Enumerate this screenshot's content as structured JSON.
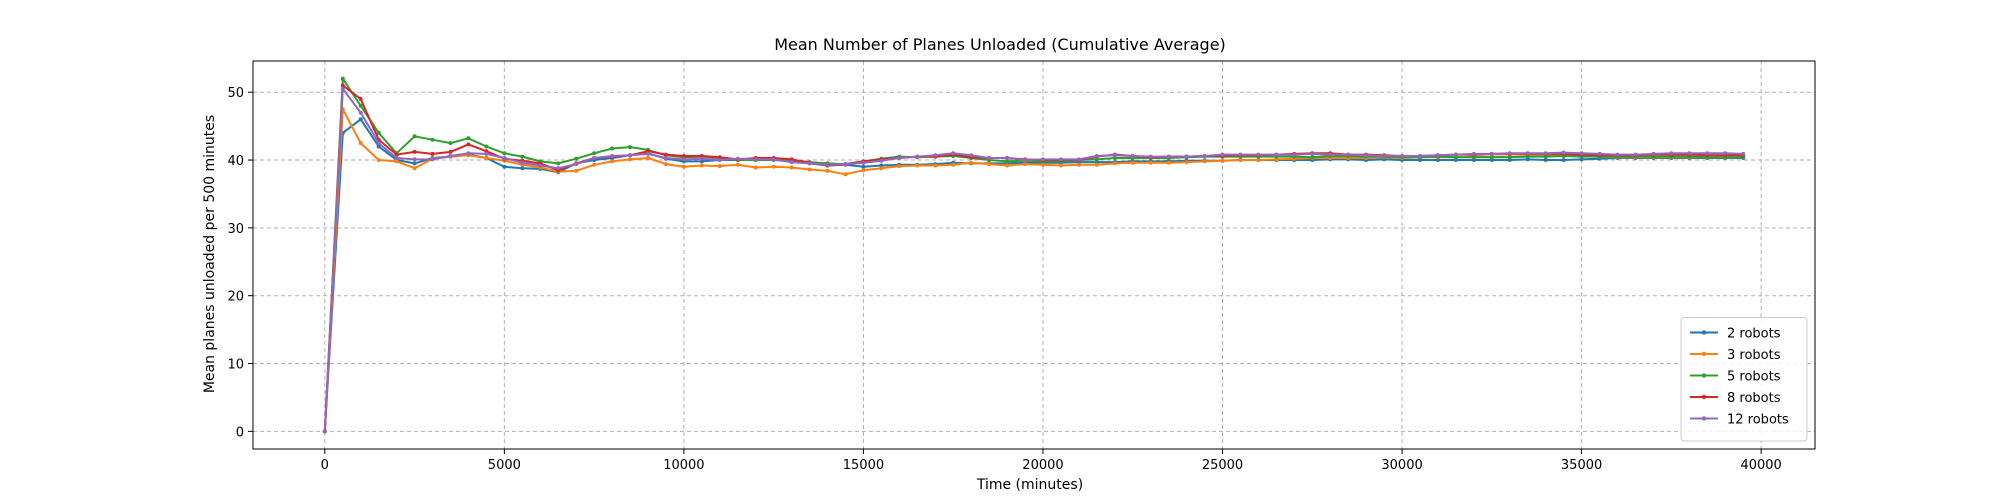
{
  "chart_data": {
    "type": "line",
    "title": "Mean Number of Planes Unloaded (Cumulative Average)",
    "xlabel": "Time (minutes)",
    "ylabel": "Mean planes unloaded per 500 minutes",
    "xlim": [
      -2000,
      41500
    ],
    "ylim": [
      -2.6,
      54.6
    ],
    "xticks": [
      0,
      5000,
      10000,
      15000,
      20000,
      25000,
      30000,
      35000,
      40000
    ],
    "yticks": [
      0,
      10,
      20,
      30,
      40,
      50
    ],
    "grid": true,
    "legend_position": "lower-right",
    "x": [
      0,
      500,
      1000,
      1500,
      2000,
      2500,
      3000,
      3500,
      4000,
      4500,
      5000,
      5500,
      6000,
      6500,
      7000,
      7500,
      8000,
      8500,
      9000,
      9500,
      10000,
      10500,
      11000,
      11500,
      12000,
      12500,
      13000,
      13500,
      14000,
      14500,
      15000,
      15500,
      16000,
      16500,
      17000,
      17500,
      18000,
      18500,
      19000,
      19500,
      20000,
      20500,
      21000,
      21500,
      22000,
      22500,
      23000,
      23500,
      24000,
      24500,
      25000,
      25500,
      26000,
      26500,
      27000,
      27500,
      28000,
      28500,
      29000,
      29500,
      30000,
      30500,
      31000,
      31500,
      32000,
      32500,
      33000,
      33500,
      34000,
      34500,
      35000,
      35500,
      36000,
      36500,
      37000,
      37500,
      38000,
      38500,
      39000,
      39500
    ],
    "series": [
      {
        "name": "2 robots",
        "color": "#1f77b4",
        "values": [
          0,
          44,
          46,
          42,
          40,
          39.5,
          40.3,
          40.5,
          40.8,
          40.3,
          39,
          38.8,
          38.7,
          38.2,
          39.5,
          40,
          40.3,
          40.7,
          41,
          40.2,
          39.8,
          39.8,
          40,
          40,
          40,
          40,
          39.8,
          39.5,
          39.2,
          39.3,
          39.0,
          39.2,
          39.3,
          39.3,
          39.4,
          39.6,
          39.5,
          39.5,
          39.5,
          39.6,
          39.6,
          39.6,
          39.7,
          39.7,
          39.7,
          39.8,
          39.8,
          39.8,
          39.9,
          39.9,
          39.9,
          40.0,
          40.0,
          40.0,
          40.0,
          40.0,
          40.1,
          40.1,
          40.0,
          40.1,
          40.0,
          40.0,
          40.0,
          40.0,
          40.0,
          40.0,
          40.0,
          40.1,
          40.0,
          40.0,
          40.1,
          40.2,
          40.3,
          40.3,
          40.3,
          40.3,
          40.3,
          40.3,
          40.3,
          40.3
        ]
      },
      {
        "name": "3 robots",
        "color": "#ff7f0e",
        "values": [
          0,
          47.5,
          42.5,
          40,
          39.8,
          38.8,
          40.2,
          40.5,
          40.7,
          40.3,
          39.9,
          39.3,
          38.9,
          38.3,
          38.4,
          39.3,
          39.8,
          40.1,
          40.3,
          39.4,
          39.0,
          39.2,
          39.1,
          39.3,
          38.9,
          39.0,
          38.9,
          38.6,
          38.4,
          37.9,
          38.5,
          38.8,
          39.1,
          39.2,
          39.2,
          39.3,
          39.6,
          39.4,
          39.2,
          39.4,
          39.3,
          39.2,
          39.3,
          39.3,
          39.5,
          39.6,
          39.6,
          39.6,
          39.7,
          39.8,
          39.9,
          40.0,
          40.0,
          40.1,
          40.2,
          40.3,
          40.3,
          40.3,
          40.3,
          40.4,
          40.3,
          40.4,
          40.4,
          40.4,
          40.5,
          40.5,
          40.5,
          40.6,
          40.6,
          40.7,
          40.6,
          40.5,
          40.4,
          40.4,
          40.4,
          40.4,
          40.4,
          40.4,
          40.4,
          40.4
        ]
      },
      {
        "name": "5 robots",
        "color": "#2ca02c",
        "values": [
          0,
          52,
          48,
          44,
          41,
          43.5,
          43,
          42.5,
          43.2,
          42,
          41,
          40.5,
          39.8,
          39.5,
          40.2,
          41,
          41.7,
          41.9,
          41.5,
          40.7,
          40.4,
          40.5,
          40.3,
          40.0,
          40.0,
          40.1,
          40.0,
          39.7,
          39.5,
          39.4,
          39.8,
          40.2,
          40.5,
          40.4,
          40.5,
          40.6,
          40.3,
          40.0,
          39.8,
          39.9,
          39.8,
          39.8,
          40.0,
          40.1,
          40.3,
          40.3,
          40.3,
          40.3,
          40.4,
          40.5,
          40.5,
          40.5,
          40.5,
          40.5,
          40.5,
          40.4,
          40.6,
          40.6,
          40.5,
          40.5,
          40.4,
          40.4,
          40.5,
          40.4,
          40.4,
          40.4,
          40.4,
          40.5,
          40.5,
          40.6,
          40.5,
          40.5,
          40.5,
          40.5,
          40.5,
          40.5,
          40.5,
          40.4,
          40.4,
          40.4
        ]
      },
      {
        "name": "8 robots",
        "color": "#d62728",
        "values": [
          0,
          51,
          49,
          43,
          40.8,
          41.2,
          40.9,
          41.2,
          42.3,
          41.3,
          40.2,
          39.9,
          39.5,
          38.5,
          39.5,
          40.3,
          40.5,
          40.7,
          41.3,
          40.8,
          40.6,
          40.6,
          40.4,
          40.1,
          40.3,
          40.3,
          40.1,
          39.6,
          39.2,
          39.4,
          39.8,
          40.1,
          40.3,
          40.5,
          40.5,
          40.8,
          40.4,
          40.3,
          40.3,
          40.1,
          40.0,
          40.0,
          40.0,
          40.5,
          40.8,
          40.6,
          40.4,
          40.5,
          40.5,
          40.6,
          40.6,
          40.7,
          40.7,
          40.8,
          40.9,
          41.0,
          41.0,
          40.8,
          40.8,
          40.7,
          40.6,
          40.6,
          40.7,
          40.8,
          40.8,
          40.9,
          40.9,
          40.9,
          40.9,
          40.9,
          40.8,
          40.7,
          40.7,
          40.7,
          40.8,
          40.8,
          40.8,
          40.7,
          40.7,
          40.7
        ]
      },
      {
        "name": "12 robots",
        "color": "#9467bd",
        "values": [
          0,
          50.5,
          47,
          42.5,
          40.3,
          40.1,
          40.1,
          40.6,
          41.0,
          40.9,
          40.3,
          39.6,
          39.2,
          38.8,
          39.4,
          40.3,
          40.6,
          40.7,
          40.9,
          40.3,
          40.1,
          40.2,
          40.0,
          40.2,
          40.1,
          40.1,
          39.7,
          39.5,
          39.3,
          39.4,
          39.6,
          39.9,
          40.3,
          40.5,
          40.7,
          41.0,
          40.7,
          40.3,
          40.3,
          40.0,
          40.1,
          40.1,
          40.1,
          40.6,
          40.7,
          40.6,
          40.5,
          40.5,
          40.5,
          40.6,
          40.8,
          40.8,
          40.8,
          40.8,
          40.8,
          40.9,
          40.8,
          40.8,
          40.7,
          40.6,
          40.6,
          40.6,
          40.7,
          40.8,
          40.9,
          40.9,
          41.0,
          41.0,
          41.0,
          41.1,
          41.0,
          40.9,
          40.8,
          40.8,
          40.9,
          41.0,
          41.0,
          41.0,
          41.0,
          40.9
        ]
      }
    ]
  }
}
